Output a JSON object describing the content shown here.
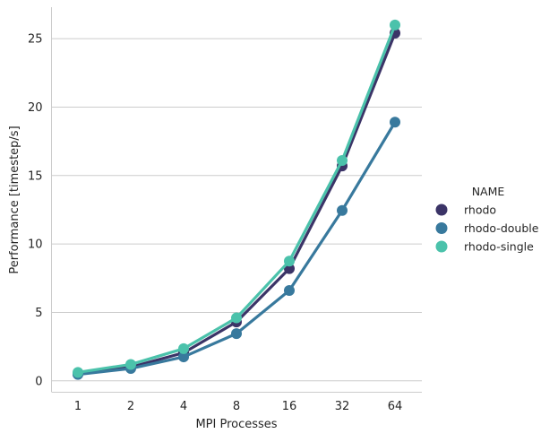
{
  "chart_data": {
    "type": "line",
    "xlabel": "MPI Processes",
    "ylabel": "Performance [timestep/s]",
    "categories": [
      "1",
      "2",
      "4",
      "8",
      "16",
      "32",
      "64"
    ],
    "yticks": [
      0,
      5,
      10,
      15,
      20,
      25
    ],
    "ylim": [
      -0.8,
      27.3
    ],
    "grid": "horizontal",
    "legend": {
      "title": "NAME",
      "position": "right"
    },
    "series": [
      {
        "name": "rhodo",
        "color": "#3b3467",
        "values": [
          0.5,
          1.0,
          2.05,
          4.3,
          8.2,
          15.7,
          25.4
        ]
      },
      {
        "name": "rhodo-double",
        "color": "#38799d",
        "values": [
          0.47,
          0.9,
          1.75,
          3.45,
          6.6,
          12.45,
          18.9
        ]
      },
      {
        "name": "rhodo-single",
        "color": "#4bc2ab",
        "values": [
          0.62,
          1.2,
          2.35,
          4.6,
          8.75,
          16.1,
          26.0
        ]
      }
    ]
  }
}
